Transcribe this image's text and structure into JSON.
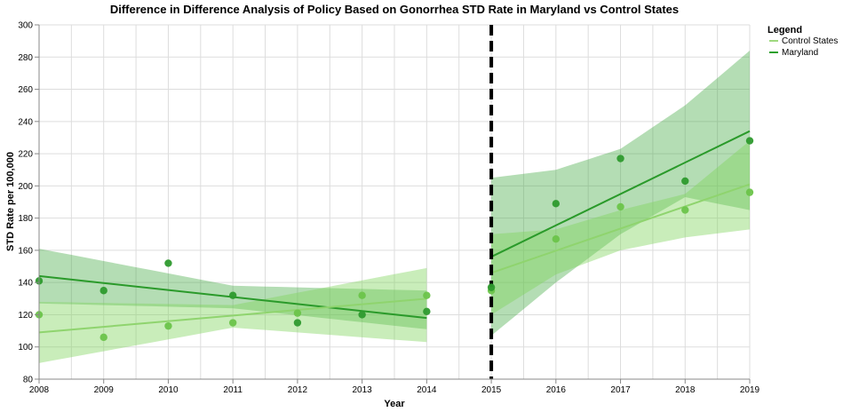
{
  "chart_data": {
    "type": "scatter",
    "title": "Difference in Difference Analysis of Policy Based on Gonorrhea STD Rate in Maryland vs Control States",
    "xlabel": "Year",
    "ylabel": "STD Rate per 100,000",
    "xlim": [
      2008,
      2019
    ],
    "ylim": [
      80,
      300
    ],
    "x_ticks": [
      "2008",
      "2009",
      "2010",
      "2011",
      "2012",
      "2013",
      "2014",
      "2015",
      "2016",
      "2017",
      "2018",
      "2019"
    ],
    "y_ticks": [
      "80",
      "100",
      "120",
      "140",
      "160",
      "180",
      "200",
      "220",
      "240",
      "260",
      "280",
      "300"
    ],
    "grid": true,
    "policy_line_x": 2015,
    "legend": {
      "title": "Legend",
      "position": "top-right",
      "entries": [
        {
          "label": "Control States",
          "color": "#9fd97f"
        },
        {
          "label": "Maryland",
          "color": "#2ca02c"
        }
      ]
    },
    "series": [
      {
        "name": "Maryland",
        "point_color": "#2e9a2e",
        "line_color": "#2a9a2a",
        "band_color": "#3aa53a",
        "band_opacity": 0.38,
        "points": [
          {
            "x": 2008,
            "y": 141
          },
          {
            "x": 2009,
            "y": 135
          },
          {
            "x": 2010,
            "y": 152
          },
          {
            "x": 2011,
            "y": 132
          },
          {
            "x": 2012,
            "y": 115
          },
          {
            "x": 2013,
            "y": 120
          },
          {
            "x": 2014,
            "y": 122
          },
          {
            "x": 2015,
            "y": 137
          },
          {
            "x": 2016,
            "y": 189
          },
          {
            "x": 2017,
            "y": 217
          },
          {
            "x": 2018,
            "y": 203
          },
          {
            "x": 2019,
            "y": 228
          }
        ],
        "fits": [
          {
            "x0": 2008,
            "x1": 2014,
            "y0": 144,
            "y1": 118,
            "band": [
              {
                "x": 2008,
                "lo": 127,
                "hi": 161
              },
              {
                "x": 2011,
                "lo": 124,
                "hi": 138
              },
              {
                "x": 2014,
                "lo": 111,
                "hi": 135
              }
            ]
          },
          {
            "x0": 2015,
            "x1": 2019,
            "y0": 156,
            "y1": 234,
            "band": [
              {
                "x": 2015,
                "lo": 107,
                "hi": 205
              },
              {
                "x": 2016,
                "lo": 140,
                "hi": 210
              },
              {
                "x": 2017,
                "lo": 170,
                "hi": 223
              },
              {
                "x": 2018,
                "lo": 193,
                "hi": 250
              },
              {
                "x": 2019,
                "lo": 185,
                "hi": 284
              }
            ]
          }
        ]
      },
      {
        "name": "Control States",
        "point_color": "#6cc44a",
        "line_color": "#8fd46e",
        "band_color": "#7fd45a",
        "band_opacity": 0.42,
        "points": [
          {
            "x": 2008,
            "y": 120
          },
          {
            "x": 2009,
            "y": 106
          },
          {
            "x": 2010,
            "y": 113
          },
          {
            "x": 2011,
            "y": 115
          },
          {
            "x": 2012,
            "y": 121
          },
          {
            "x": 2013,
            "y": 132
          },
          {
            "x": 2014,
            "y": 132
          },
          {
            "x": 2015,
            "y": 135
          },
          {
            "x": 2016,
            "y": 167
          },
          {
            "x": 2017,
            "y": 187
          },
          {
            "x": 2018,
            "y": 185
          },
          {
            "x": 2019,
            "y": 196
          }
        ],
        "fits": [
          {
            "x0": 2008,
            "x1": 2014,
            "y0": 109,
            "y1": 130,
            "band": [
              {
                "x": 2008,
                "lo": 90,
                "hi": 128
              },
              {
                "x": 2011,
                "lo": 112,
                "hi": 126
              },
              {
                "x": 2014,
                "lo": 103,
                "hi": 149
              }
            ]
          },
          {
            "x0": 2015,
            "x1": 2019,
            "y0": 146,
            "y1": 201,
            "band": [
              {
                "x": 2015,
                "lo": 120,
                "hi": 170
              },
              {
                "x": 2016,
                "lo": 145,
                "hi": 173
              },
              {
                "x": 2017,
                "lo": 160,
                "hi": 185
              },
              {
                "x": 2018,
                "lo": 168,
                "hi": 195
              },
              {
                "x": 2019,
                "lo": 173,
                "hi": 228
              }
            ]
          }
        ]
      }
    ]
  }
}
